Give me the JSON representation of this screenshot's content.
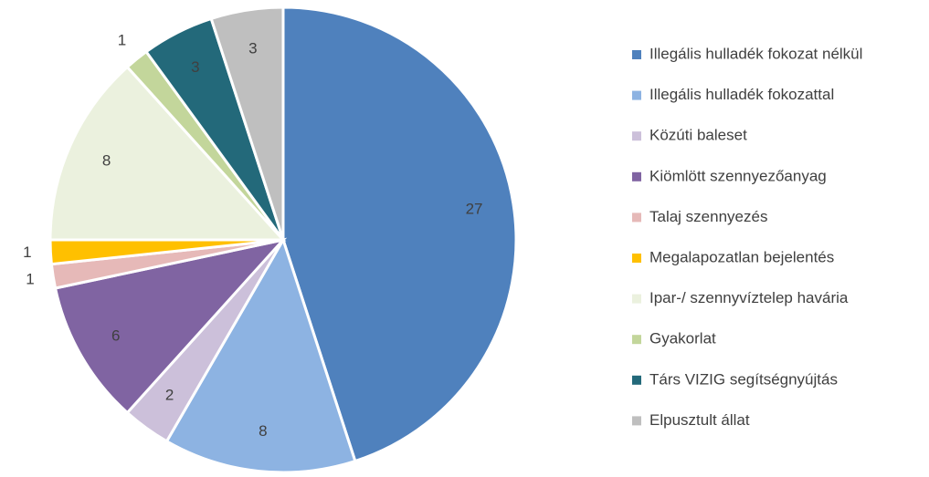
{
  "chart_data": {
    "type": "pie",
    "categories": [
      "Illegális hulladék fokozat nélkül",
      "Illegális hulladék fokozattal",
      "Közúti baleset",
      "Kiömlött szennyezőanyag",
      "Talaj szennyezés",
      "Megalapozatlan bejelentés",
      "Ipar-/ szennyvíztelep havária",
      "Gyakorlat",
      "Társ VIZIG segítségnyújtás",
      "Elpusztult állat"
    ],
    "values": [
      27,
      8,
      2,
      6,
      1,
      1,
      8,
      1,
      3,
      3
    ],
    "colors": [
      "#4f81bd",
      "#8db3e2",
      "#ccc0da",
      "#8064a2",
      "#e6b9b8",
      "#ffc000",
      "#ebf1de",
      "#c3d69b",
      "#23697a",
      "#bfbfbf"
    ],
    "legend": "right"
  }
}
